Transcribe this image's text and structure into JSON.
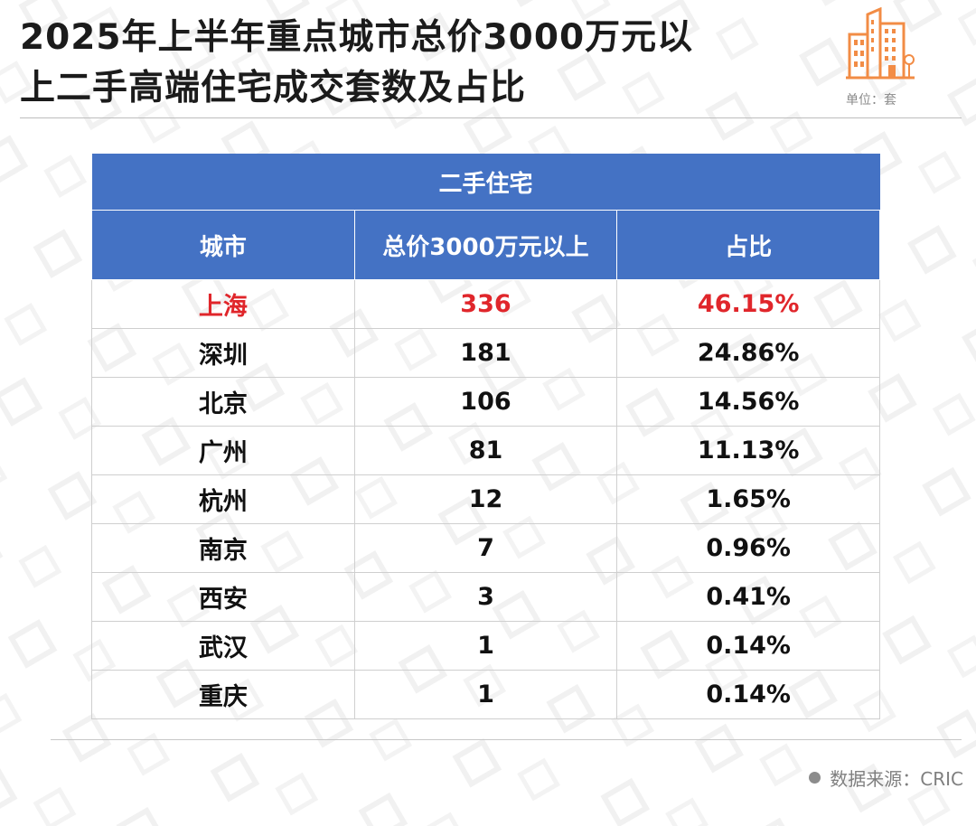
{
  "title_line1": "2025年上半年重点城市总价3000万元以",
  "title_line2": "上二手高端住宅成交套数及占比",
  "unit": "单位：套",
  "source": "数据来源：CRIC",
  "colors": {
    "header_bg": "#4472c4",
    "highlight": "#e0262b",
    "icon": "#f28c45"
  },
  "icons": [
    "building-icon"
  ],
  "chart_data": {
    "type": "table",
    "group_header": "二手住宅",
    "columns": [
      "城市",
      "总价3000万元以上",
      "占比"
    ],
    "rows": [
      {
        "city": "上海",
        "count": "336",
        "share": "46.15%"
      },
      {
        "city": "深圳",
        "count": "181",
        "share": "24.86%"
      },
      {
        "city": "北京",
        "count": "106",
        "share": "14.56%"
      },
      {
        "city": "广州",
        "count": "81",
        "share": "11.13%"
      },
      {
        "city": "杭州",
        "count": "12",
        "share": "1.65%"
      },
      {
        "city": "南京",
        "count": "7",
        "share": "0.96%"
      },
      {
        "city": "西安",
        "count": "3",
        "share": "0.41%"
      },
      {
        "city": "武汉",
        "count": "1",
        "share": "0.14%"
      },
      {
        "city": "重庆",
        "count": "1",
        "share": "0.14%"
      }
    ],
    "highlighted_row": 0
  }
}
